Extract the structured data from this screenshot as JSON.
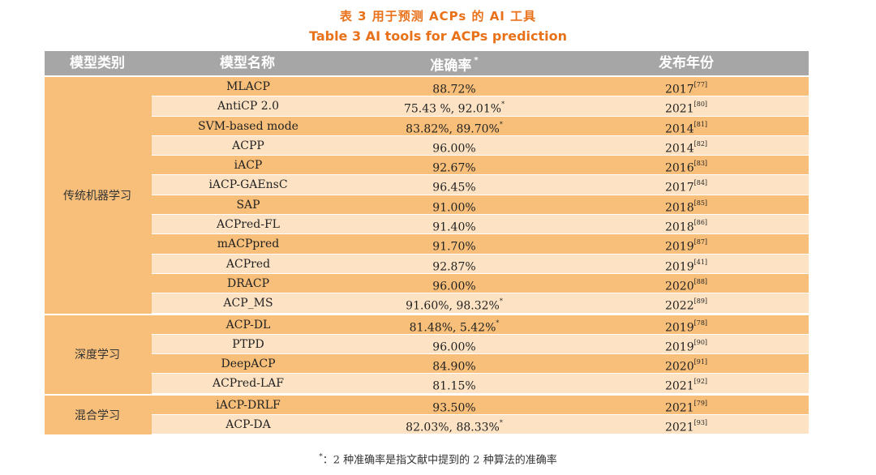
{
  "title_cn": "表 3  用于预测 ACPs 的 AI 工具",
  "title_en": "Table 3  AI tools for ACPs prediction",
  "headers": {
    "category": "模型类别",
    "name": "模型名称",
    "accuracy": "准确率",
    "accuracy_mark": "*",
    "year": "发布年份"
  },
  "groups": [
    {
      "category": "传统机器学习",
      "rows": [
        {
          "name": "MLACP",
          "accuracy": "88.72%",
          "acc_mark": "",
          "year": "2017",
          "ref": "[77]"
        },
        {
          "name": "AntiCP 2.0",
          "accuracy": "75.43 %, 92.01%",
          "acc_mark": "*",
          "year": "2021",
          "ref": "[80]"
        },
        {
          "name": "SVM-based mode",
          "accuracy": "83.82%, 89.70%",
          "acc_mark": "*",
          "year": "2014",
          "ref": "[81]"
        },
        {
          "name": "ACPP",
          "accuracy": "96.00%",
          "acc_mark": "",
          "year": "2014",
          "ref": "[82]"
        },
        {
          "name": "iACP",
          "accuracy": "92.67%",
          "acc_mark": "",
          "year": "2016",
          "ref": "[83]"
        },
        {
          "name": "iACP-GAEnsC",
          "accuracy": "96.45%",
          "acc_mark": "",
          "year": "2017",
          "ref": "[84]"
        },
        {
          "name": "SAP",
          "accuracy": "91.00%",
          "acc_mark": "",
          "year": "2018",
          "ref": "[85]"
        },
        {
          "name": "ACPred-FL",
          "accuracy": "91.40%",
          "acc_mark": "",
          "year": "2018",
          "ref": "[86]"
        },
        {
          "name": "mACPpred",
          "accuracy": "91.70%",
          "acc_mark": "",
          "year": "2019",
          "ref": "[87]"
        },
        {
          "name": "ACPred",
          "accuracy": "92.87%",
          "acc_mark": "",
          "year": "2019",
          "ref": "[41]"
        },
        {
          "name": "DRACP",
          "accuracy": "96.00%",
          "acc_mark": "",
          "year": "2020",
          "ref": "[88]"
        },
        {
          "name": "ACP_MS",
          "accuracy": "91.60%, 98.32%",
          "acc_mark": "*",
          "year": "2022",
          "ref": "[89]"
        }
      ]
    },
    {
      "category": "深度学习",
      "rows": [
        {
          "name": "ACP-DL",
          "accuracy": "81.48%, 5.42%",
          "acc_mark": "*",
          "year": "2019",
          "ref": "[78]"
        },
        {
          "name": "PTPD",
          "accuracy": "96.00%",
          "acc_mark": "",
          "year": "2019",
          "ref": "[90]"
        },
        {
          "name": "DeepACP",
          "accuracy": "84.90%",
          "acc_mark": "",
          "year": "2020",
          "ref": "[91]"
        },
        {
          "name": "ACPred-LAF",
          "accuracy": "81.15%",
          "acc_mark": "",
          "year": "2021",
          "ref": "[92]"
        }
      ]
    },
    {
      "category": "混合学习",
      "rows": [
        {
          "name": "iACP-DRLF",
          "accuracy": "93.50%",
          "acc_mark": "",
          "year": "2021",
          "ref": "[79]"
        },
        {
          "name": "ACP-DA",
          "accuracy": "82.03%, 88.33%",
          "acc_mark": "*",
          "year": "2021",
          "ref": "[93]"
        }
      ]
    }
  ],
  "footnote_mark": "*",
  "footnote": "：2 种准确率是指文献中提到的 2 种算法的准确率"
}
